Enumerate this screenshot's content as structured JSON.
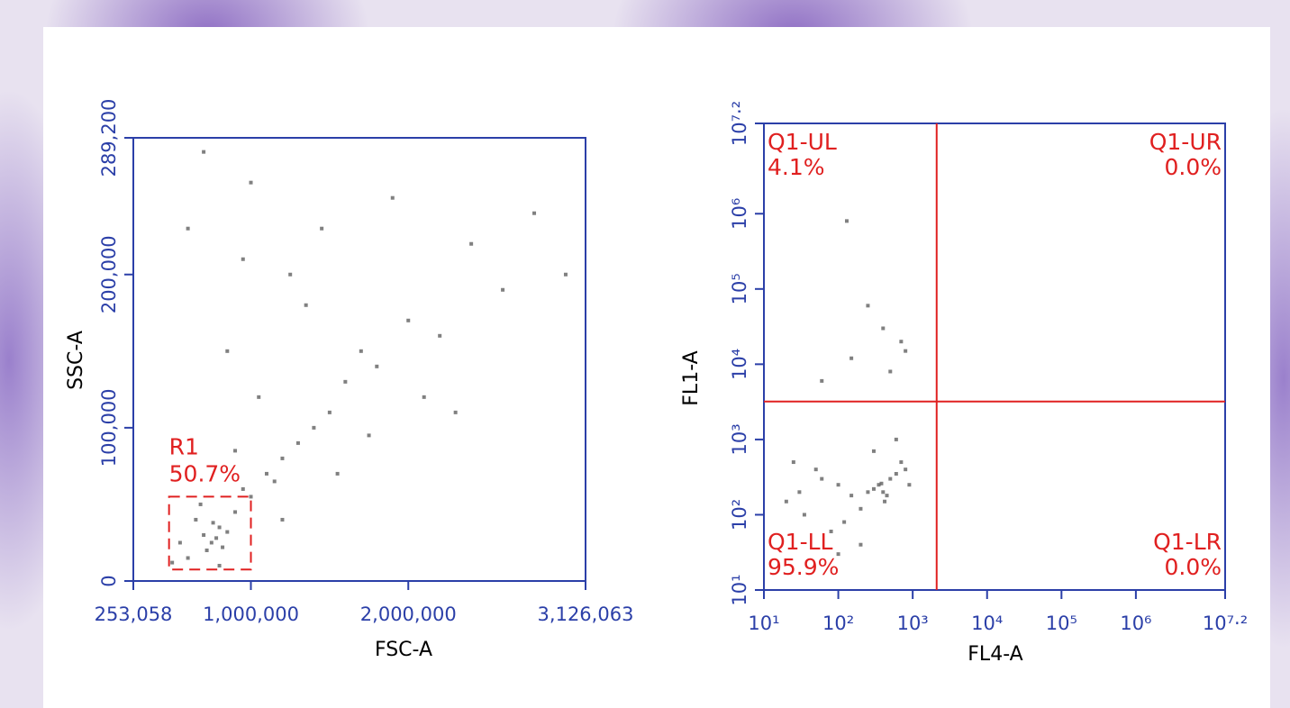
{
  "chart_data": [
    {
      "type": "scatter",
      "x_label": "FSC-A",
      "y_label": "SSC-A",
      "xlim": [
        253058,
        3126063
      ],
      "xticks": [
        {
          "value": 253058,
          "label": "253,058"
        },
        {
          "value": 1000000,
          "label": "1,000,000"
        },
        {
          "value": 2000000,
          "label": "2,000,000"
        },
        {
          "value": 3126063,
          "label": "3,126,063"
        }
      ],
      "ylim": [
        0,
        289200
      ],
      "yticks": [
        0,
        {
          "value": 100000,
          "label": "100,000"
        },
        {
          "value": 200000,
          "label": "200,000"
        },
        {
          "value": 289200,
          "label": "289,200"
        }
      ],
      "axis_color": "#2b3fa8",
      "point_color": "#555555",
      "x": [
        700000,
        750000,
        800000,
        650000,
        720000,
        780000,
        850000,
        600000,
        900000,
        680000,
        760000,
        820000,
        950000,
        1000000,
        1100000,
        550000,
        500000,
        1200000,
        1300000,
        1150000,
        1400000,
        1500000,
        900000,
        1050000,
        1600000,
        1700000,
        1800000,
        2000000,
        2200000,
        1250000,
        1350000,
        850000,
        950000,
        1450000,
        1900000,
        2400000,
        2600000,
        2800000,
        3000000,
        2100000,
        1000000,
        700000,
        600000,
        1750000,
        2300000,
        1550000,
        1200000,
        800000
      ],
      "y": [
        30000,
        25000,
        35000,
        40000,
        20000,
        28000,
        32000,
        15000,
        45000,
        50000,
        38000,
        22000,
        60000,
        55000,
        70000,
        25000,
        12000,
        80000,
        90000,
        65000,
        100000,
        110000,
        85000,
        120000,
        130000,
        150000,
        140000,
        170000,
        160000,
        200000,
        180000,
        150000,
        210000,
        230000,
        250000,
        220000,
        190000,
        240000,
        200000,
        120000,
        260000,
        280000,
        230000,
        95000,
        110000,
        70000,
        40000,
        10000
      ],
      "gates": [
        {
          "name": "R1",
          "value": 50.7,
          "value_label": "50.7%",
          "x": [
            480000,
            1000000
          ],
          "y": [
            7500,
            55000
          ],
          "color": "#e02020"
        }
      ]
    },
    {
      "type": "scatter",
      "x_label": "FL4-A",
      "y_label": "FL1-A",
      "xscale": "log",
      "yscale": "log",
      "xlim": [
        10,
        15848932
      ],
      "xticks": [
        {
          "value": 10,
          "label": "10¹"
        },
        {
          "value": 100,
          "label": "10²"
        },
        {
          "value": 1000,
          "label": "10³"
        },
        {
          "value": 10000,
          "label": "10⁴"
        },
        {
          "value": 100000,
          "label": "10⁵"
        },
        {
          "value": 1000000,
          "label": "10⁶"
        },
        {
          "value": 15848932,
          "label": "10⁷·²"
        }
      ],
      "ylim": [
        10,
        15848932
      ],
      "yticks": [
        {
          "value": 10,
          "label": "10¹"
        },
        {
          "value": 100,
          "label": "10²"
        },
        {
          "value": 1000,
          "label": "10³"
        },
        {
          "value": 10000,
          "label": "10⁴"
        },
        {
          "value": 100000,
          "label": "10⁵"
        },
        {
          "value": 1000000,
          "label": "10⁶"
        },
        {
          "value": 15848932,
          "label": "10⁷·²"
        }
      ],
      "axis_color": "#2b3fa8",
      "point_color": "#555555",
      "x": [
        400,
        350,
        450,
        300,
        500,
        420,
        380,
        250,
        600,
        200,
        150,
        100,
        60,
        30,
        20,
        700,
        800,
        900,
        120,
        80,
        50,
        35,
        25,
        600,
        300,
        200,
        100,
        500,
        800,
        400,
        150,
        60,
        250,
        700,
        130
      ],
      "y": [
        200,
        250,
        180,
        220,
        300,
        150,
        260,
        200,
        350,
        120,
        180,
        250,
        300,
        200,
        150,
        500,
        400,
        250,
        80,
        60,
        400,
        100,
        500,
        1000,
        700,
        40,
        30,
        8000,
        15000,
        30000,
        12000,
        6000,
        60000,
        20000,
        800000
      ],
      "quadrant_x": 2100,
      "quadrant_y": 3200,
      "quadrant_color": "#e02020",
      "quadrants": [
        {
          "name": "Q1-UL",
          "value": 4.1,
          "value_label": "4.1%"
        },
        {
          "name": "Q1-UR",
          "value": 0.0,
          "value_label": "0.0%"
        },
        {
          "name": "Q1-LL",
          "value": 95.9,
          "value_label": "95.9%"
        },
        {
          "name": "Q1-LR",
          "value": 0.0,
          "value_label": "0.0%"
        }
      ]
    }
  ]
}
